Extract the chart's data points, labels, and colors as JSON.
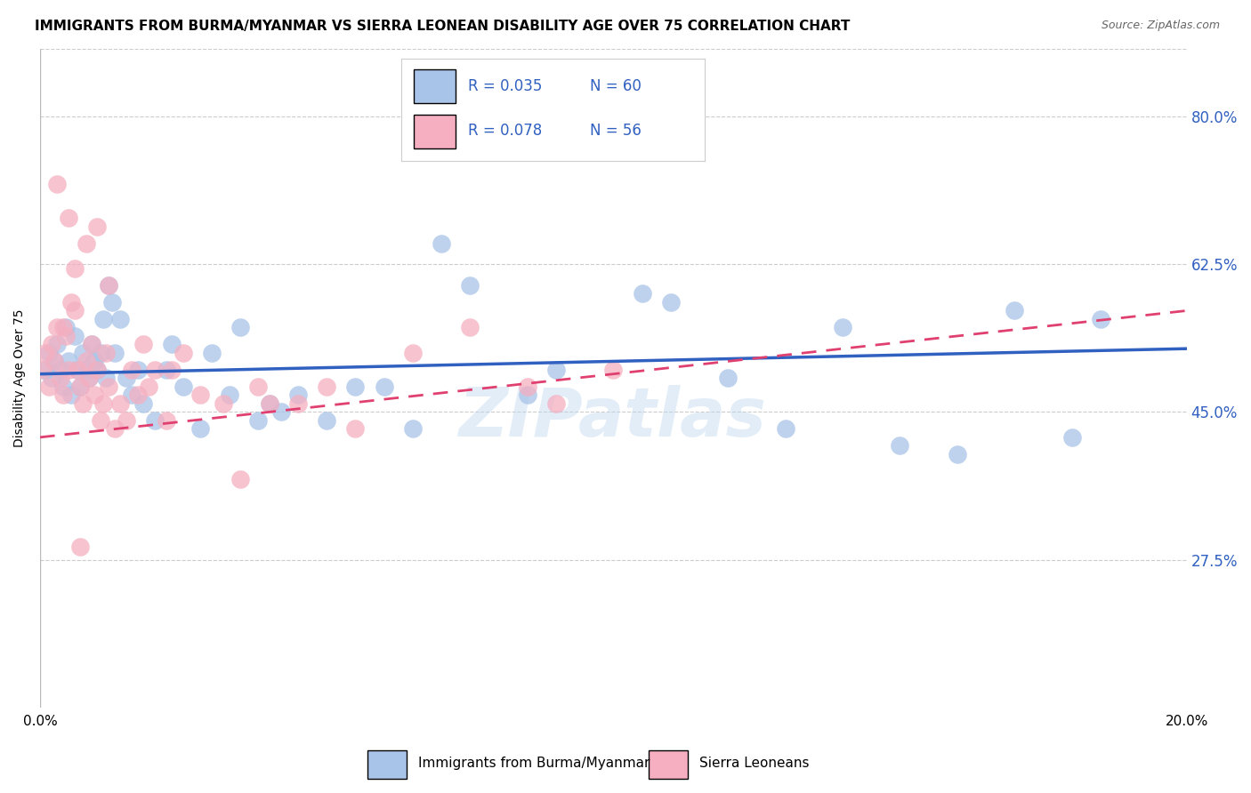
{
  "title": "IMMIGRANTS FROM BURMA/MYANMAR VS SIERRA LEONEAN DISABILITY AGE OVER 75 CORRELATION CHART",
  "source": "Source: ZipAtlas.com",
  "ylabel": "Disability Age Over 75",
  "xlim": [
    0.0,
    20.0
  ],
  "ylim": [
    10.0,
    88.0
  ],
  "yticks": [
    27.5,
    45.0,
    62.5,
    80.0
  ],
  "legend_r_blue": "R = 0.035",
  "legend_n_blue": "N = 60",
  "legend_r_pink": "R = 0.078",
  "legend_n_pink": "N = 56",
  "legend_label_blue": "Immigrants from Burma/Myanmar",
  "legend_label_pink": "Sierra Leoneans",
  "blue_color": "#a8c4e8",
  "pink_color": "#f5afc0",
  "line_blue_color": "#3060c0",
  "line_pink_color": "#e04070",
  "watermark": "ZIPatlas",
  "blue_line_x0": 0.0,
  "blue_line_y0": 49.5,
  "blue_line_x1": 20.0,
  "blue_line_y1": 52.5,
  "pink_line_x0": 0.0,
  "pink_line_y0": 42.0,
  "pink_line_x1": 20.0,
  "pink_line_y1": 57.0,
  "blue_x": [
    0.1,
    0.15,
    0.2,
    0.25,
    0.3,
    0.35,
    0.4,
    0.45,
    0.5,
    0.55,
    0.6,
    0.65,
    0.7,
    0.75,
    0.8,
    0.85,
    0.9,
    0.95,
    1.0,
    1.05,
    1.1,
    1.15,
    1.2,
    1.25,
    1.3,
    1.4,
    1.5,
    1.6,
    1.8,
    2.0,
    2.2,
    2.5,
    2.8,
    3.0,
    3.3,
    3.8,
    4.0,
    4.5,
    5.5,
    6.5,
    7.0,
    7.5,
    8.5,
    9.0,
    10.5,
    11.0,
    12.0,
    13.0,
    14.0,
    15.0,
    16.0,
    17.0,
    18.0,
    18.5,
    5.0,
    6.0,
    3.5,
    4.2,
    2.3,
    1.7
  ],
  "blue_y": [
    50,
    52,
    49,
    51,
    53,
    50,
    48,
    55,
    51,
    47,
    54,
    50,
    48,
    52,
    50,
    49,
    53,
    51,
    50,
    52,
    56,
    49,
    60,
    58,
    52,
    56,
    49,
    47,
    46,
    44,
    50,
    48,
    43,
    52,
    47,
    44,
    46,
    47,
    48,
    43,
    65,
    60,
    47,
    50,
    59,
    58,
    49,
    43,
    55,
    41,
    40,
    57,
    42,
    56,
    44,
    48,
    55,
    45,
    53,
    50
  ],
  "pink_x": [
    0.05,
    0.1,
    0.15,
    0.2,
    0.25,
    0.3,
    0.35,
    0.4,
    0.45,
    0.5,
    0.55,
    0.6,
    0.65,
    0.7,
    0.75,
    0.8,
    0.85,
    0.9,
    0.95,
    1.0,
    1.05,
    1.1,
    1.15,
    1.2,
    1.3,
    1.4,
    1.5,
    1.6,
    1.7,
    1.8,
    1.9,
    2.0,
    2.2,
    2.5,
    2.8,
    3.2,
    3.8,
    4.5,
    5.5,
    6.5,
    7.5,
    8.5,
    9.0,
    10.0,
    5.0,
    0.3,
    0.5,
    0.8,
    1.0,
    1.2,
    2.3,
    3.5,
    4.0,
    0.6,
    0.4,
    0.7
  ],
  "pink_y": [
    50,
    52,
    48,
    53,
    51,
    55,
    49,
    47,
    54,
    50,
    58,
    62,
    50,
    48,
    46,
    51,
    49,
    53,
    47,
    50,
    44,
    46,
    52,
    48,
    43,
    46,
    44,
    50,
    47,
    53,
    48,
    50,
    44,
    52,
    47,
    46,
    48,
    46,
    43,
    52,
    55,
    48,
    46,
    50,
    48,
    72,
    68,
    65,
    67,
    60,
    50,
    37,
    46,
    57,
    55,
    29
  ],
  "background_color": "#ffffff",
  "grid_color": "#cccccc",
  "title_fontsize": 11,
  "axis_label_fontsize": 10,
  "tick_fontsize": 11
}
